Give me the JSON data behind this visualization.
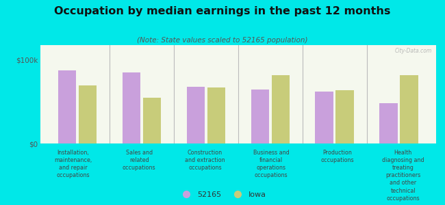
{
  "title": "Occupation by median earnings in the past 12 months",
  "subtitle": "(Note: State values scaled to 52165 population)",
  "background_color": "#00e8e8",
  "plot_bg_top": "#f5f8ee",
  "plot_bg_bottom": "#e8efd8",
  "categories": [
    "Installation,\nmaintenance,\nand repair\noccupations",
    "Sales and\nrelated\noccupations",
    "Construction\nand extraction\noccupations",
    "Business and\nfinancial\noperations\noccupations",
    "Production\noccupations",
    "Health\ndiagnosing and\ntreating\npractitioners\nand other\ntechnical\noccupations"
  ],
  "values_52165": [
    88000,
    85000,
    68000,
    65000,
    62000,
    48000
  ],
  "values_iowa": [
    70000,
    55000,
    67000,
    82000,
    64000,
    82000
  ],
  "color_52165": "#c9a0dc",
  "color_iowa": "#c8cc7a",
  "ylabel_ticks": [
    "$0",
    "$100k"
  ],
  "ytick_vals": [
    0,
    100000
  ],
  "ylim": [
    0,
    118000
  ],
  "legend_52165": "52165",
  "legend_iowa": "Iowa",
  "watermark": "City-Data.com"
}
